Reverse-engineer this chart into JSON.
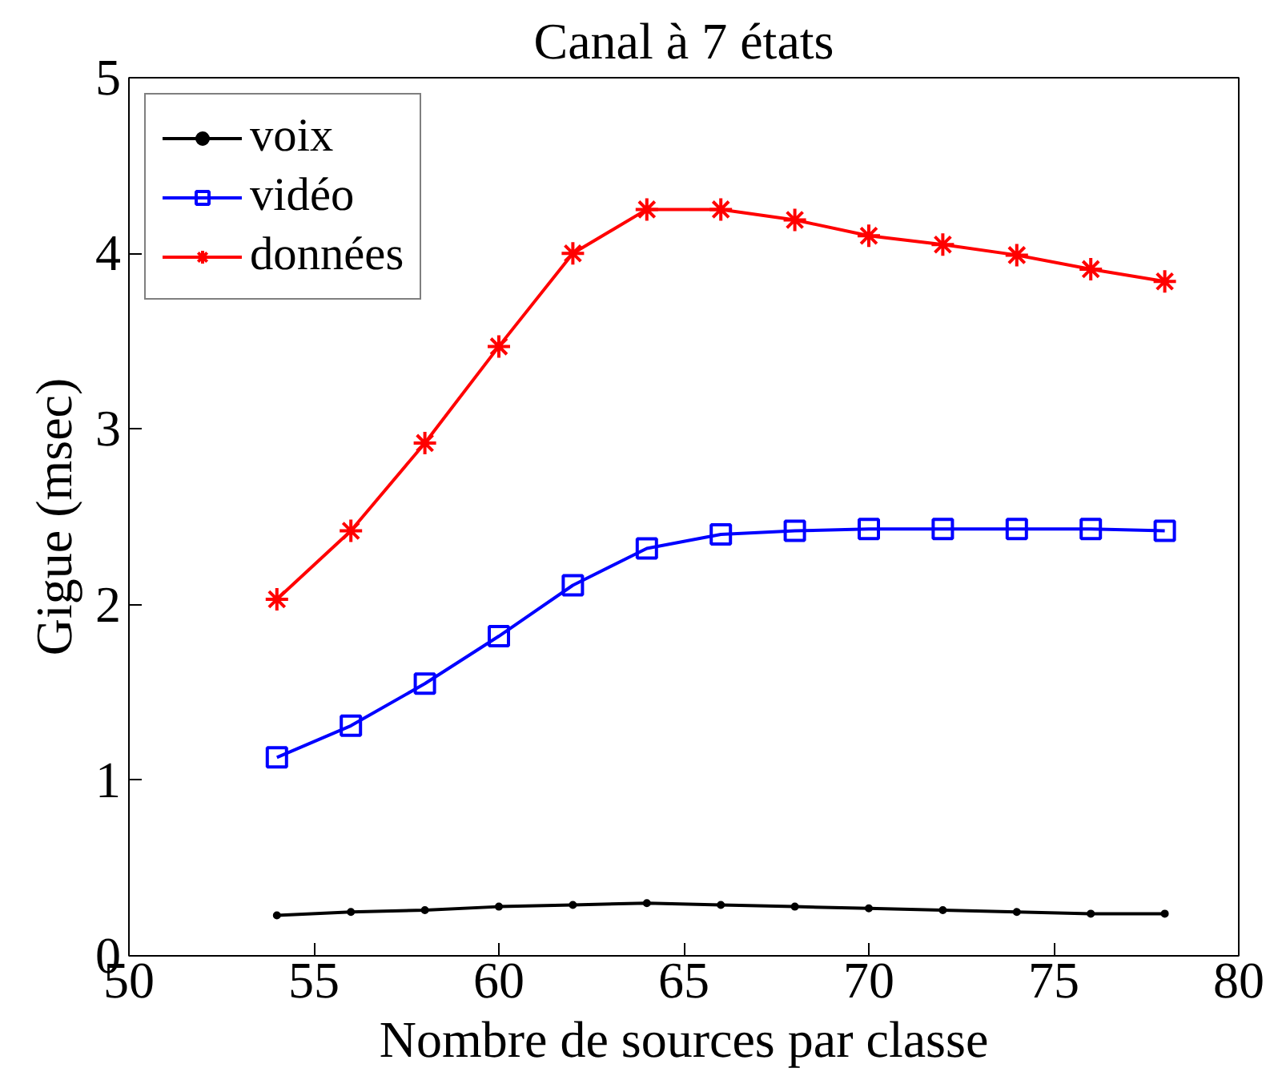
{
  "chart_data": {
    "type": "line",
    "title": "Canal à 7 états",
    "xlabel": "Nombre de sources par classe",
    "ylabel": "Gigue (msec)",
    "x": [
      54,
      56,
      58,
      60,
      62,
      64,
      66,
      68,
      70,
      72,
      74,
      76,
      78
    ],
    "series": [
      {
        "name": "voix",
        "color": "#000000",
        "marker": "circle",
        "values": [
          0.23,
          0.25,
          0.26,
          0.28,
          0.29,
          0.3,
          0.29,
          0.28,
          0.27,
          0.26,
          0.25,
          0.24,
          0.24
        ]
      },
      {
        "name": "vidéo",
        "color": "#0000ff",
        "marker": "square",
        "values": [
          1.13,
          1.31,
          1.55,
          1.82,
          2.11,
          2.32,
          2.4,
          2.42,
          2.43,
          2.43,
          2.43,
          2.43,
          2.42
        ]
      },
      {
        "name": "données",
        "color": "#ff0000",
        "marker": "cross",
        "values": [
          2.03,
          2.42,
          2.92,
          3.47,
          4.0,
          4.25,
          4.25,
          4.19,
          4.1,
          4.05,
          3.99,
          3.91,
          3.84
        ]
      }
    ],
    "xlim": [
      50,
      80
    ],
    "xticks": [
      50,
      55,
      60,
      65,
      70,
      75,
      80
    ],
    "ylim": [
      0,
      5
    ],
    "yticks": [
      0,
      1,
      2,
      3,
      4,
      5
    ],
    "grid": false,
    "legend": "top left",
    "line_style": "solid"
  }
}
